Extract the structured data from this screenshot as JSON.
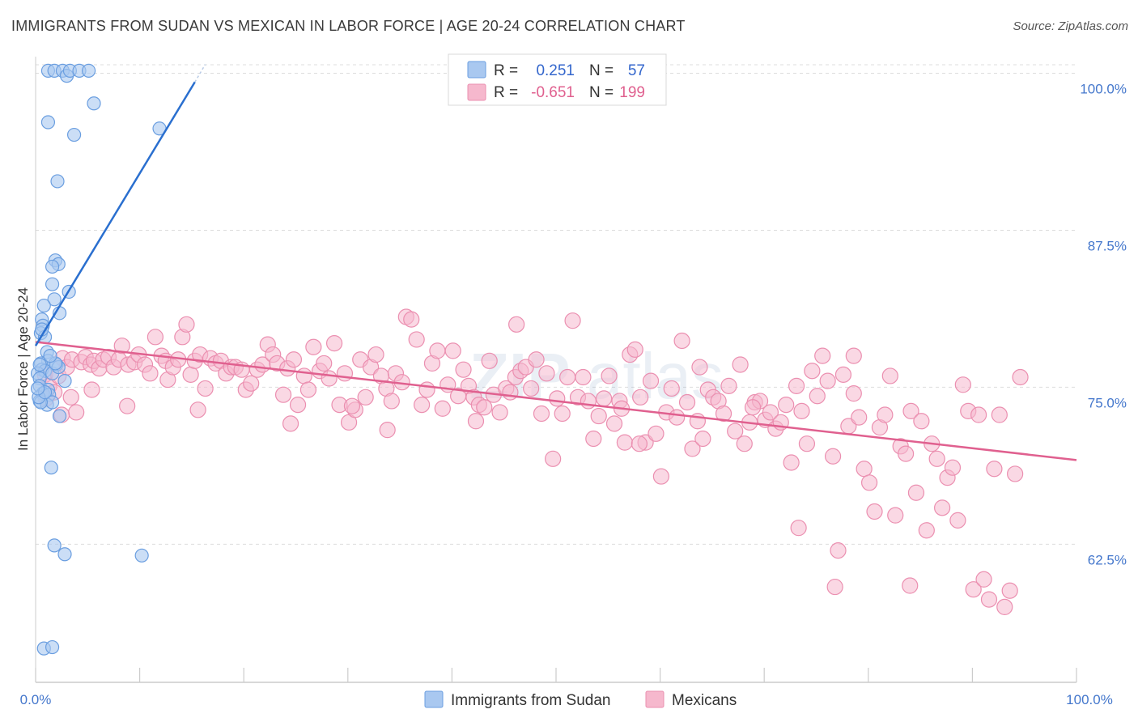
{
  "title": "IMMIGRANTS FROM SUDAN VS MEXICAN IN LABOR FORCE | AGE 20-24 CORRELATION CHART",
  "source": "Source: ZipAtlas.com",
  "colors": {
    "blue_fill": "#a9c8f0",
    "blue_stroke": "#6a9ee0",
    "blue_line": "#2a6fcf",
    "pink_fill": "#f6b8cd",
    "pink_stroke": "#eb8fb0",
    "pink_line": "#e0608f",
    "grid": "#dddddd",
    "tick_text": "#4477cc"
  },
  "legend": {
    "r_label": "R =",
    "n_label": "N =",
    "rows": [
      {
        "r": "0.251",
        "n": "57"
      },
      {
        "r": "-0.651",
        "n": "199"
      }
    ]
  },
  "chart_data": {
    "type": "scatter",
    "title": "IMMIGRANTS FROM SUDAN VS MEXICAN IN LABOR FORCE | AGE 20-24 CORRELATION CHART",
    "xlabel": "",
    "ylabel": "In Labor Force | Age 20-24",
    "xlim": [
      0,
      100
    ],
    "ylim": [
      51.5,
      101
    ],
    "x_tick_labels": [
      "0.0%",
      "100.0%"
    ],
    "y_ticks": [
      62.5,
      75.0,
      87.5,
      100.0
    ],
    "y_tick_labels": [
      "62.5%",
      "75.0%",
      "87.5%",
      "100.0%"
    ],
    "grid": "horizontal dashed",
    "legend_position": "top-center",
    "series": [
      {
        "name": "Immigrants from Sudan",
        "r": 0.251,
        "n": 57,
        "trend": {
          "x": [
            0,
            15.3
          ],
          "y": [
            78.3,
            99.3
          ]
        },
        "points": [
          [
            1.2,
            100.2
          ],
          [
            1.8,
            100.2
          ],
          [
            2.6,
            100.2
          ],
          [
            3.0,
            99.8
          ],
          [
            3.3,
            100.2
          ],
          [
            4.2,
            100.2
          ],
          [
            5.1,
            100.2
          ],
          [
            5.6,
            97.6
          ],
          [
            1.2,
            96.1
          ],
          [
            3.7,
            95.1
          ],
          [
            11.9,
            95.6
          ],
          [
            2.1,
            91.4
          ],
          [
            1.9,
            85.1
          ],
          [
            2.2,
            84.8
          ],
          [
            1.6,
            84.6
          ],
          [
            1.6,
            83.2
          ],
          [
            3.2,
            82.6
          ],
          [
            1.8,
            82.0
          ],
          [
            0.8,
            81.5
          ],
          [
            2.3,
            80.9
          ],
          [
            0.6,
            80.4
          ],
          [
            0.7,
            79.9
          ],
          [
            0.5,
            79.3
          ],
          [
            0.9,
            79.0
          ],
          [
            1.1,
            77.8
          ],
          [
            1.2,
            77.1
          ],
          [
            0.5,
            76.9
          ],
          [
            2.0,
            76.8
          ],
          [
            0.6,
            76.4
          ],
          [
            0.9,
            76.3
          ],
          [
            0.2,
            76.1
          ],
          [
            1.6,
            76.1
          ],
          [
            2.2,
            76.6
          ],
          [
            0.4,
            75.7
          ],
          [
            2.8,
            75.5
          ],
          [
            0.4,
            75.1
          ],
          [
            1.2,
            74.8
          ],
          [
            0.7,
            74.5
          ],
          [
            1.3,
            74.4
          ],
          [
            0.4,
            73.9
          ],
          [
            1.1,
            73.6
          ],
          [
            1.6,
            73.8
          ],
          [
            0.5,
            73.8
          ],
          [
            2.3,
            72.7
          ],
          [
            1.5,
            68.6
          ],
          [
            1.8,
            62.4
          ],
          [
            2.8,
            61.7
          ],
          [
            10.2,
            61.6
          ],
          [
            0.8,
            54.2
          ],
          [
            1.6,
            54.3
          ],
          [
            0.3,
            74.2
          ],
          [
            0.9,
            74.6
          ],
          [
            0.4,
            76.8
          ],
          [
            1.9,
            76.9
          ],
          [
            0.6,
            79.6
          ],
          [
            1.4,
            77.5
          ],
          [
            0.2,
            74.9
          ]
        ]
      },
      {
        "name": "Mexicans",
        "r": -0.651,
        "n": 199,
        "trend": {
          "x": [
            0,
            100
          ],
          "y": [
            78.6,
            69.2
          ]
        },
        "points": [
          [
            0.9,
            76.0
          ],
          [
            1.3,
            75.1
          ],
          [
            1.8,
            74.6
          ],
          [
            2.2,
            75.9
          ],
          [
            2.6,
            77.3
          ],
          [
            3.0,
            76.6
          ],
          [
            3.5,
            77.2
          ],
          [
            3.9,
            73.0
          ],
          [
            4.4,
            77.0
          ],
          [
            4.8,
            77.4
          ],
          [
            5.3,
            76.8
          ],
          [
            5.6,
            77.1
          ],
          [
            6.1,
            76.5
          ],
          [
            6.5,
            77.2
          ],
          [
            7.0,
            77.4
          ],
          [
            7.5,
            76.6
          ],
          [
            8.0,
            77.2
          ],
          [
            8.3,
            78.3
          ],
          [
            8.9,
            76.8
          ],
          [
            9.5,
            77.0
          ],
          [
            9.9,
            77.6
          ],
          [
            10.5,
            76.8
          ],
          [
            11.0,
            76.1
          ],
          [
            11.5,
            79.0
          ],
          [
            12.1,
            77.5
          ],
          [
            12.5,
            77.1
          ],
          [
            12.7,
            75.6
          ],
          [
            13.2,
            76.6
          ],
          [
            13.7,
            77.2
          ],
          [
            14.1,
            79.0
          ],
          [
            14.5,
            80.0
          ],
          [
            14.9,
            76.0
          ],
          [
            15.3,
            77.1
          ],
          [
            15.8,
            77.6
          ],
          [
            16.3,
            74.9
          ],
          [
            16.8,
            77.3
          ],
          [
            17.3,
            76.9
          ],
          [
            17.8,
            77.1
          ],
          [
            18.3,
            76.1
          ],
          [
            18.8,
            76.6
          ],
          [
            19.2,
            76.6
          ],
          [
            19.8,
            76.4
          ],
          [
            20.2,
            74.8
          ],
          [
            20.7,
            75.3
          ],
          [
            21.3,
            76.4
          ],
          [
            21.8,
            76.8
          ],
          [
            22.3,
            78.4
          ],
          [
            22.8,
            77.6
          ],
          [
            23.2,
            76.9
          ],
          [
            23.8,
            74.4
          ],
          [
            24.2,
            76.5
          ],
          [
            24.8,
            77.2
          ],
          [
            25.2,
            73.6
          ],
          [
            25.8,
            75.9
          ],
          [
            26.2,
            74.8
          ],
          [
            26.7,
            78.2
          ],
          [
            27.3,
            76.3
          ],
          [
            27.7,
            76.9
          ],
          [
            28.2,
            75.7
          ],
          [
            28.7,
            78.5
          ],
          [
            29.2,
            73.6
          ],
          [
            29.7,
            76.1
          ],
          [
            30.1,
            72.2
          ],
          [
            30.7,
            73.2
          ],
          [
            31.2,
            77.2
          ],
          [
            31.7,
            74.2
          ],
          [
            32.2,
            76.6
          ],
          [
            32.7,
            77.6
          ],
          [
            33.2,
            75.9
          ],
          [
            33.7,
            74.9
          ],
          [
            34.2,
            73.9
          ],
          [
            34.6,
            76.1
          ],
          [
            35.2,
            75.4
          ],
          [
            35.6,
            80.6
          ],
          [
            36.1,
            80.4
          ],
          [
            36.6,
            78.8
          ],
          [
            37.1,
            73.6
          ],
          [
            37.6,
            74.8
          ],
          [
            38.1,
            76.9
          ],
          [
            38.6,
            77.9
          ],
          [
            39.1,
            73.3
          ],
          [
            39.6,
            75.2
          ],
          [
            40.1,
            77.9
          ],
          [
            40.6,
            74.3
          ],
          [
            41.1,
            76.4
          ],
          [
            41.6,
            75.1
          ],
          [
            42.1,
            74.2
          ],
          [
            42.6,
            73.6
          ],
          [
            43.1,
            73.4
          ],
          [
            43.6,
            77.1
          ],
          [
            44.0,
            74.4
          ],
          [
            44.6,
            73.0
          ],
          [
            45.2,
            74.9
          ],
          [
            45.6,
            74.6
          ],
          [
            46.1,
            75.8
          ],
          [
            46.6,
            76.3
          ],
          [
            47.1,
            76.6
          ],
          [
            47.6,
            74.9
          ],
          [
            48.1,
            77.2
          ],
          [
            48.6,
            72.9
          ],
          [
            49.1,
            76.1
          ],
          [
            49.7,
            69.3
          ],
          [
            50.1,
            74.1
          ],
          [
            50.6,
            72.9
          ],
          [
            51.1,
            75.8
          ],
          [
            51.6,
            80.3
          ],
          [
            52.1,
            74.2
          ],
          [
            52.6,
            75.8
          ],
          [
            53.1,
            73.9
          ],
          [
            53.6,
            70.9
          ],
          [
            54.1,
            72.7
          ],
          [
            54.6,
            74.1
          ],
          [
            55.1,
            75.9
          ],
          [
            55.6,
            72.1
          ],
          [
            56.1,
            73.9
          ],
          [
            56.6,
            70.6
          ],
          [
            57.1,
            77.6
          ],
          [
            57.6,
            78.0
          ],
          [
            58.1,
            74.2
          ],
          [
            58.6,
            70.6
          ],
          [
            59.1,
            75.5
          ],
          [
            59.6,
            71.3
          ],
          [
            60.1,
            67.9
          ],
          [
            60.6,
            73.0
          ],
          [
            61.1,
            74.9
          ],
          [
            61.6,
            72.6
          ],
          [
            62.1,
            78.7
          ],
          [
            62.6,
            73.8
          ],
          [
            63.1,
            70.1
          ],
          [
            63.6,
            72.3
          ],
          [
            64.1,
            70.9
          ],
          [
            64.6,
            74.8
          ],
          [
            65.1,
            74.2
          ],
          [
            65.6,
            73.9
          ],
          [
            66.1,
            72.9
          ],
          [
            66.6,
            75.1
          ],
          [
            67.2,
            71.5
          ],
          [
            67.7,
            76.8
          ],
          [
            68.1,
            70.5
          ],
          [
            68.6,
            72.2
          ],
          [
            69.1,
            73.8
          ],
          [
            69.6,
            73.9
          ],
          [
            70.1,
            72.4
          ],
          [
            70.6,
            73.0
          ],
          [
            71.1,
            71.7
          ],
          [
            71.6,
            72.2
          ],
          [
            72.1,
            73.6
          ],
          [
            72.6,
            69.0
          ],
          [
            73.1,
            75.1
          ],
          [
            73.6,
            73.1
          ],
          [
            74.1,
            70.5
          ],
          [
            74.6,
            76.3
          ],
          [
            75.1,
            74.3
          ],
          [
            75.6,
            77.5
          ],
          [
            76.1,
            75.5
          ],
          [
            76.6,
            69.5
          ],
          [
            77.1,
            62.0
          ],
          [
            77.6,
            76.0
          ],
          [
            78.1,
            71.9
          ],
          [
            78.6,
            74.5
          ],
          [
            79.1,
            72.6
          ],
          [
            79.6,
            68.5
          ],
          [
            80.1,
            67.4
          ],
          [
            80.6,
            65.1
          ],
          [
            81.1,
            71.8
          ],
          [
            81.6,
            72.8
          ],
          [
            82.1,
            75.9
          ],
          [
            82.6,
            64.8
          ],
          [
            83.1,
            70.3
          ],
          [
            83.6,
            69.7
          ],
          [
            84.1,
            73.1
          ],
          [
            84.6,
            66.6
          ],
          [
            85.1,
            72.3
          ],
          [
            85.6,
            63.6
          ],
          [
            86.1,
            70.5
          ],
          [
            86.6,
            69.3
          ],
          [
            87.1,
            65.4
          ],
          [
            87.6,
            67.8
          ],
          [
            88.1,
            68.6
          ],
          [
            88.6,
            64.4
          ],
          [
            89.1,
            75.2
          ],
          [
            89.6,
            73.1
          ],
          [
            90.1,
            58.9
          ],
          [
            90.6,
            72.8
          ],
          [
            91.1,
            59.7
          ],
          [
            91.6,
            58.1
          ],
          [
            92.1,
            68.5
          ],
          [
            92.6,
            72.8
          ],
          [
            93.1,
            57.5
          ],
          [
            93.6,
            58.8
          ],
          [
            94.1,
            68.1
          ],
          [
            94.6,
            75.8
          ],
          [
            78.6,
            77.5
          ],
          [
            76.8,
            59.1
          ],
          [
            63.8,
            76.6
          ],
          [
            56.3,
            73.3
          ],
          [
            42.3,
            72.3
          ],
          [
            33.8,
            71.6
          ],
          [
            24.5,
            72.1
          ],
          [
            5.4,
            74.8
          ],
          [
            2.5,
            72.8
          ],
          [
            30.4,
            73.5
          ],
          [
            68.9,
            73.4
          ],
          [
            84.0,
            59.2
          ],
          [
            46.2,
            80.0
          ],
          [
            58.0,
            70.5
          ],
          [
            73.3,
            63.8
          ],
          [
            15.6,
            73.2
          ],
          [
            1.0,
            74.1
          ],
          [
            8.8,
            73.5
          ],
          [
            3.4,
            74.2
          ]
        ]
      }
    ]
  },
  "bottom_legend": [
    "Immigrants from Sudan",
    "Mexicans"
  ]
}
